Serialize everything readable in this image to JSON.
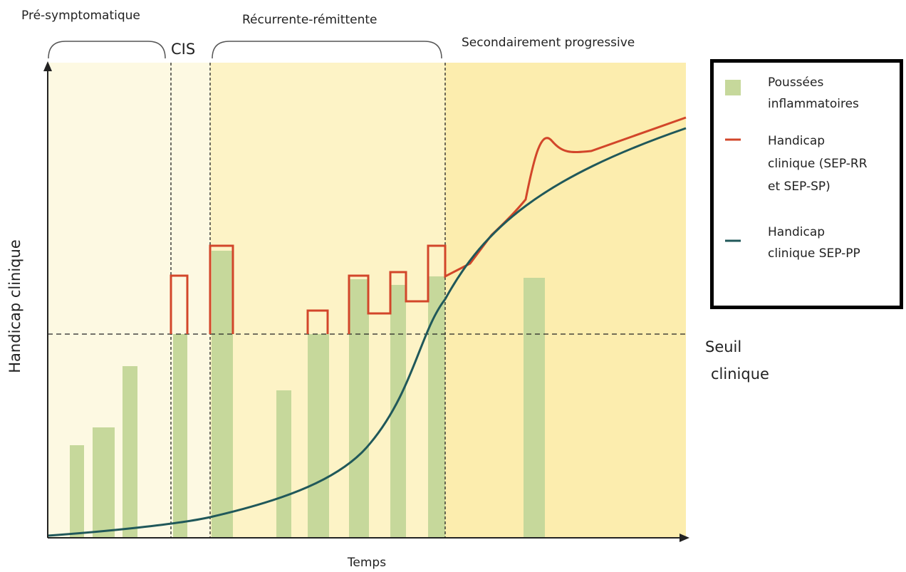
{
  "phases": {
    "pre": "Pré-symptomatique",
    "cis": "CIS",
    "rr": "Récurrente-rémittente",
    "sp": "Secondairement progressive"
  },
  "axes": {
    "y": "Handicap clinique",
    "x": "Temps"
  },
  "threshold": [
    "Seuil",
    "clinique"
  ],
  "legend": [
    {
      "lines": [
        "Poussées",
        "inflammatoires"
      ]
    },
    {
      "lines": [
        "Handicap",
        "clinique (SEP-RR",
        "et SEP-SP)"
      ]
    },
    {
      "lines": [
        "Handicap",
        "clinique SEP-PP"
      ]
    }
  ]
}
